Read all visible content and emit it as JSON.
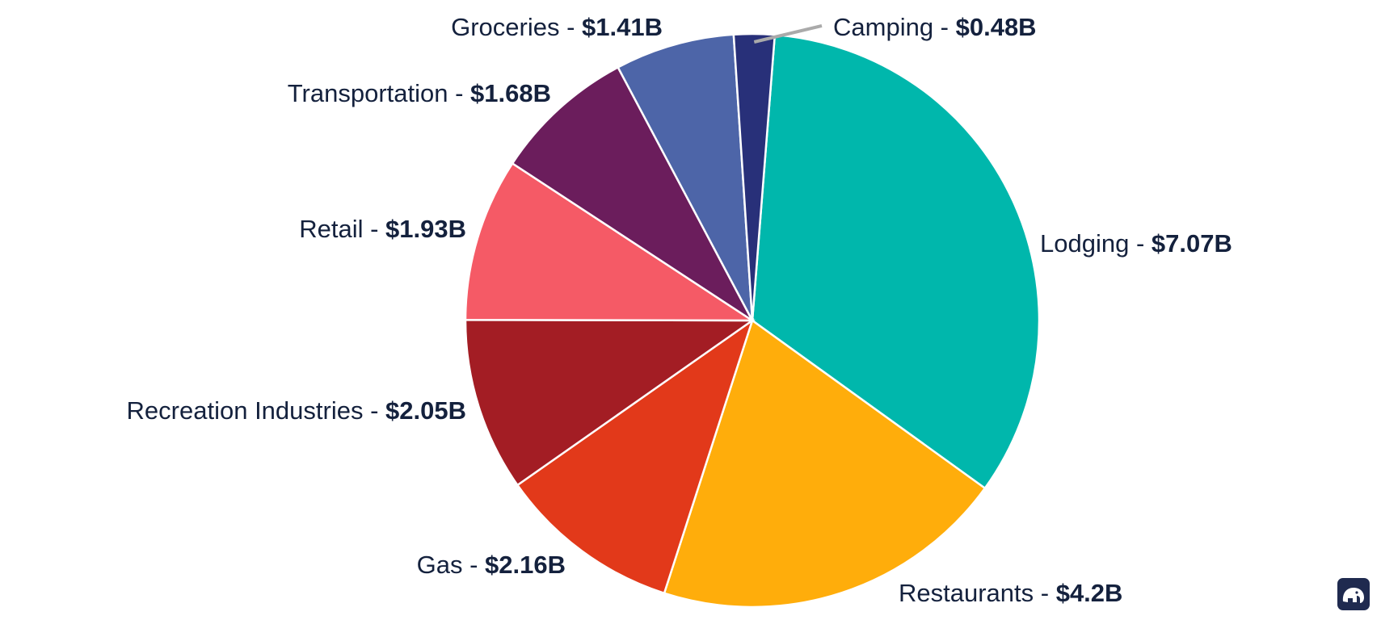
{
  "chart_data": {
    "type": "pie",
    "title": "",
    "slices": [
      {
        "label": "Lodging",
        "value": 7.07,
        "value_label": "$7.07B",
        "color": "#00b7ac"
      },
      {
        "label": "Restaurants",
        "value": 4.2,
        "value_label": "$4.2B",
        "color": "#ffad0b"
      },
      {
        "label": "Gas",
        "value": 2.16,
        "value_label": "$2.16B",
        "color": "#e2391a"
      },
      {
        "label": "Recreation Industries",
        "value": 2.05,
        "value_label": "$2.05B",
        "color": "#a31d24"
      },
      {
        "label": "Retail",
        "value": 1.93,
        "value_label": "$1.93B",
        "color": "#f55a66"
      },
      {
        "label": "Transportation",
        "value": 1.68,
        "value_label": "$1.68B",
        "color": "#6b1d5c"
      },
      {
        "label": "Groceries",
        "value": 1.41,
        "value_label": "$1.41B",
        "color": "#4d65a8"
      },
      {
        "label": "Camping",
        "value": 0.48,
        "value_label": "$0.48B",
        "color": "#283079"
      }
    ],
    "label_separator": " - ",
    "leader_line_color": "#aaaaaa"
  },
  "logo": {
    "icon": "elephant-icon",
    "color": "#1f2a4f"
  }
}
